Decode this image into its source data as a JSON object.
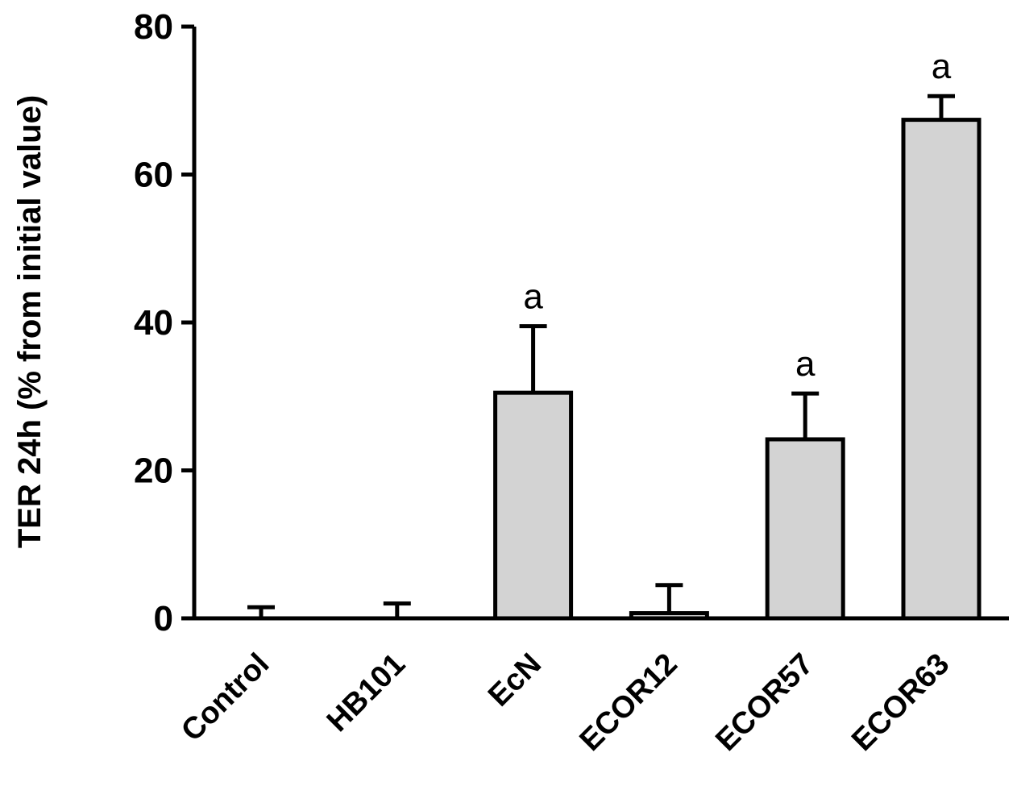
{
  "chart_data": {
    "type": "bar",
    "title": "",
    "xlabel": "",
    "ylabel": "TER 24h (% from initial value)",
    "ylim": [
      0,
      80
    ],
    "yticks": [
      "0",
      "20",
      "40",
      "60",
      "80"
    ],
    "grid": false,
    "legend": "none",
    "categories": [
      "Control",
      "HB101",
      "EcN",
      "ECOR12",
      "ECOR57",
      "ECOR63"
    ],
    "values": [
      0,
      0,
      30.5,
      0.7,
      24.2,
      67.4
    ],
    "error_upper": [
      1.5,
      2,
      9,
      3.8,
      6.2,
      3.2
    ],
    "significance": [
      "",
      "",
      "a",
      "",
      "a",
      "a"
    ],
    "colors": {
      "bar_fill": "#d3d3d3",
      "bar_stroke": "#000000",
      "axis": "#000000"
    }
  }
}
